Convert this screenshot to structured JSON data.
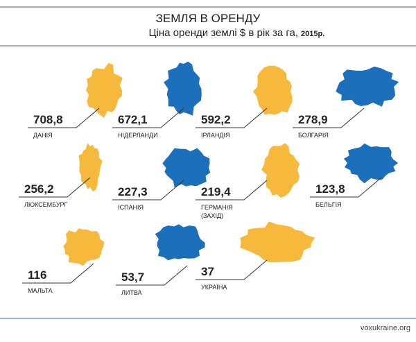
{
  "header": {
    "title": "ЗЕМЛЯ В ОРЕНДУ",
    "subtitle": "Ціна оренди землі $ в рік за га,",
    "subtitle_year": "2015р."
  },
  "items": [
    {
      "value": "708,8",
      "label": "ДАНІЯ",
      "color": "#f6b93b"
    },
    {
      "value": "672,1",
      "label": "НІДЕРЛАНДИ",
      "color": "#1c6fba"
    },
    {
      "value": "592,2",
      "label": "ІРЛАНДІЯ",
      "color": "#f6b93b"
    },
    {
      "value": "278,9",
      "label": "БОЛГАРІЯ",
      "color": "#1c6fba"
    },
    {
      "value": "256,2",
      "label": "ЛЮКСЕМБУРГ",
      "color": "#f6b93b"
    },
    {
      "value": "227,3",
      "label": "ІСПАНІЯ",
      "color": "#1c6fba"
    },
    {
      "value": "219,4",
      "label": "ГЕРМАНІЯ",
      "note": "(ЗАХІД)",
      "color": "#f6b93b"
    },
    {
      "value": "123,8",
      "label": "БЕЛЬГІЯ",
      "color": "#1c6fba"
    },
    {
      "value": "116",
      "label": "МАЛЬТА",
      "color": "#f6b93b"
    },
    {
      "value": "53,7",
      "label": "ЛИТВА",
      "color": "#1c6fba"
    },
    {
      "value": "37",
      "label": "УКРАЇНА",
      "color": "#f6b93b"
    }
  ],
  "footer": {
    "source": "voxukraine.org"
  }
}
